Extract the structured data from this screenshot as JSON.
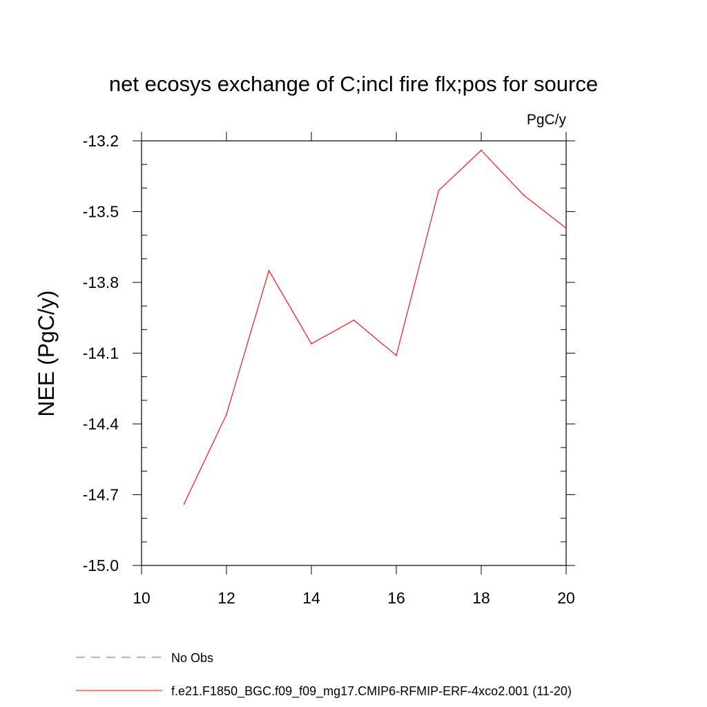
{
  "chart_data": {
    "type": "line",
    "title": "net ecosys exchange of C;incl fire flx;pos for source",
    "units": "PgC/y",
    "ylabel": "NEE  (PgC/y)",
    "xlabel": "",
    "xlim": [
      10,
      20
    ],
    "ylim": [
      -15.0,
      -13.2
    ],
    "xticks": [
      "10",
      "12",
      "14",
      "16",
      "18",
      "20"
    ],
    "yticks": [
      "-13.2",
      "-13.5",
      "-13.8",
      "-14.1",
      "-14.4",
      "-14.7",
      "-15.0"
    ],
    "series": [
      {
        "name": "f.e21.F1850_BGC.f09_f09_mg17.CMIP6-RFMIP-ERF-4xco2.001 (11-20)",
        "color": "#ff0000",
        "style": "solid",
        "x": [
          11,
          12,
          13,
          14,
          15,
          16,
          17,
          18,
          19,
          20
        ],
        "y": [
          -14.74,
          -14.36,
          -13.75,
          -14.06,
          -13.96,
          -14.11,
          -13.41,
          -13.24,
          -13.43,
          -13.57
        ]
      }
    ],
    "legend": [
      {
        "label": "No Obs",
        "color": "#6a5acd",
        "style": "dashed"
      },
      {
        "label": "f.e21.F1850_BGC.f09_f09_mg17.CMIP6-RFMIP-ERF-4xco2.001 (11-20)",
        "color": "#ff0000",
        "style": "solid"
      }
    ],
    "legend_position": "bottom-left",
    "grid": false
  }
}
